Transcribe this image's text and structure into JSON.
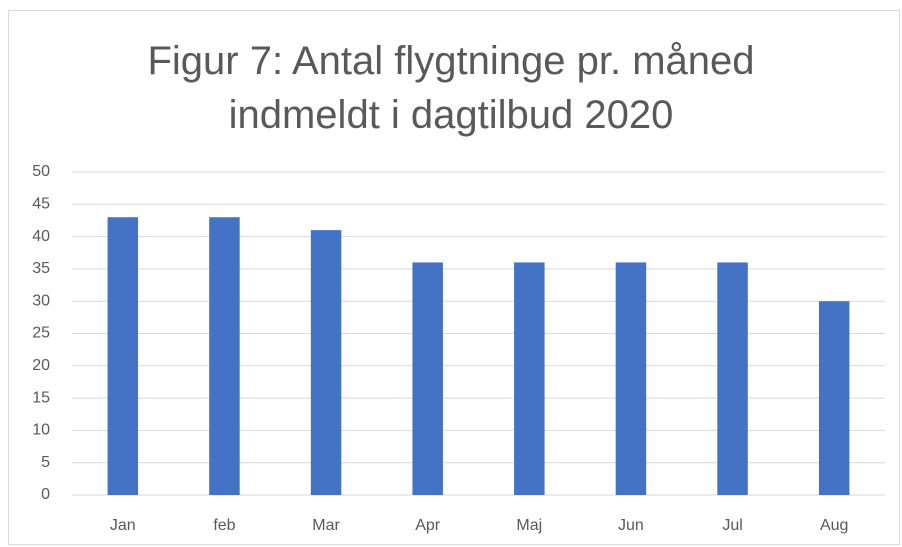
{
  "chart_data": {
    "type": "bar",
    "title": "Figur 7: Antal flygtninge pr. måned indmeldt i dagtilbud 2020",
    "categories": [
      "Jan",
      "feb",
      "Mar",
      "Apr",
      "Maj",
      "Jun",
      "Jul",
      "Aug"
    ],
    "values": [
      43,
      43,
      41,
      36,
      36,
      36,
      36,
      30
    ],
    "color": "#4472c4",
    "ylim": [
      0,
      50
    ],
    "yticks": [
      0,
      5,
      10,
      15,
      20,
      25,
      30,
      35,
      40,
      45,
      50
    ],
    "grid": true
  }
}
